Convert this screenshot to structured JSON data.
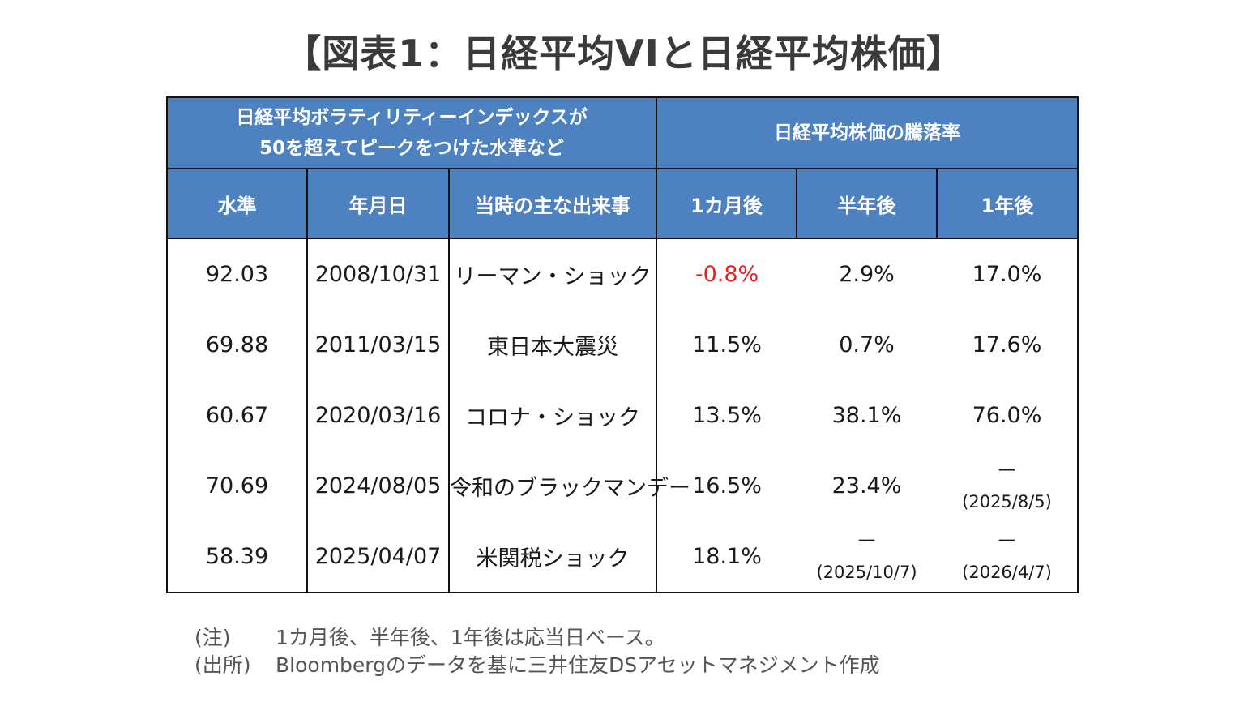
{
  "title": "【図表1：日経平均VIと日経平均株価】",
  "table": {
    "group_headers": {
      "vi_line1": "日経平均ボラティリティーインデックスが",
      "vi_line2": "50を超えてピークをつけた水準など",
      "price_change": "日経平均株価の騰落率"
    },
    "column_headers": {
      "level": "水準",
      "date": "年月日",
      "event": "当時の主な出来事",
      "after_1m": "1カ月後",
      "after_6m": "半年後",
      "after_1y": "1年後"
    },
    "rows": [
      {
        "level": "92.03",
        "date": "2008/10/31",
        "event": "リーマン・ショック",
        "after_1m": "-0.8%",
        "after_6m": "2.9%",
        "after_1y": "17.0%"
      },
      {
        "level": "69.88",
        "date": "2011/03/15",
        "event": "東日本大震災",
        "after_1m": "11.5%",
        "after_6m": "0.7%",
        "after_1y": "17.6%"
      },
      {
        "level": "60.67",
        "date": "2020/03/16",
        "event": "コロナ・ショック",
        "after_1m": "13.5%",
        "after_6m": "38.1%",
        "after_1y": "76.0%"
      },
      {
        "level": "70.69",
        "date": "2024/08/05",
        "event": "令和のブラックマンデー",
        "after_1m": "16.5%",
        "after_6m": "23.4%",
        "after_1y": "－",
        "after_1y_note": "(2025/8/5)"
      },
      {
        "level": "58.39",
        "date": "2025/04/07",
        "event": "米関税ショック",
        "after_1m": "18.1%",
        "after_6m": "－",
        "after_6m_note": "(2025/10/7)",
        "after_1y": "－",
        "after_1y_note": "(2026/4/7)"
      }
    ],
    "negative_color": "#e8201f",
    "header_color": "#4e81c0"
  },
  "notes": {
    "note_label": "(注)",
    "note_text": "1カ月後、半年後、1年後は応当日ベース。",
    "source_label": "(出所)",
    "source_text": "Bloombergのデータを基に三井住友DSアセットマネジメント作成"
  }
}
